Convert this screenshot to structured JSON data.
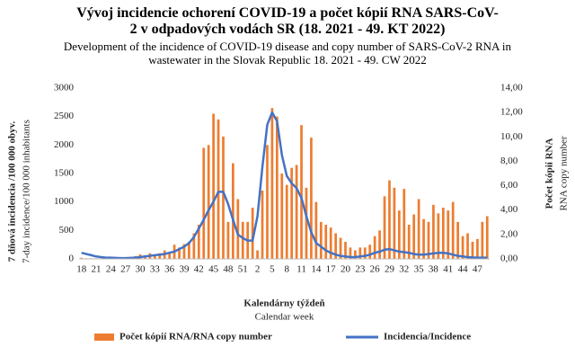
{
  "chart_data": {
    "type": "bar",
    "title": "Vývoj incidencie ochorení COVID-19 a počet kópií RNA  SARS-CoV-2 v odpadových vodách SR (18. 2021 - 49. KT 2022)",
    "subtitle": "Development of the incidence of COVID-19 disease and copy number of SARS-CoV-2 RNA in wastewater in the Slovak Republic 18. 2021 - 49. CW 2022",
    "x_label": "Kalendárny týždeň",
    "x_label_en": "Calendar week",
    "y_label": "7 dňová incidencia /100 000 obyv.",
    "y_label_en": "7-day incidence/100 000 inhabitants",
    "y2_label": "Počet kópií RNA",
    "y2_label_en": "RNA copy number",
    "categories": [
      "18",
      null,
      null,
      "21",
      null,
      null,
      "24",
      null,
      null,
      "27",
      null,
      null,
      "30",
      null,
      null,
      "33",
      null,
      null,
      "36",
      null,
      null,
      "39",
      null,
      null,
      "42",
      null,
      null,
      "45",
      null,
      null,
      "48",
      null,
      null,
      "51",
      null,
      null,
      "2",
      null,
      null,
      "5",
      null,
      null,
      "8",
      null,
      null,
      "11",
      null,
      null,
      "14",
      null,
      null,
      "17",
      null,
      null,
      "20",
      null,
      null,
      "23",
      null,
      null,
      "26",
      null,
      null,
      "29",
      null,
      null,
      "32",
      null,
      null,
      "35",
      null,
      null,
      "38",
      null,
      null,
      "41",
      null,
      null,
      "44",
      null,
      null,
      "47",
      null,
      null
    ],
    "series": [
      {
        "name": "Počet kópií RNA/RNA copy number",
        "type": "bar",
        "color": "#ed7d31",
        "values": [
          20,
          10,
          10,
          10,
          10,
          10,
          10,
          10,
          20,
          20,
          30,
          50,
          80,
          60,
          100,
          60,
          100,
          150,
          120,
          250,
          200,
          260,
          300,
          450,
          600,
          1950,
          2000,
          2550,
          2450,
          2150,
          650,
          1680,
          1050,
          650,
          650,
          900,
          150,
          1200,
          2000,
          2650,
          2500,
          1500,
          1300,
          1600,
          1650,
          2350,
          1250,
          2130,
          1000,
          650,
          600,
          550,
          450,
          370,
          300,
          200,
          150,
          200,
          200,
          250,
          400,
          500,
          1100,
          1380,
          1250,
          850,
          1230,
          600,
          780,
          1050,
          700,
          650,
          950,
          800,
          900,
          850,
          1000,
          650,
          400,
          450,
          300,
          350,
          650,
          750
        ]
      },
      {
        "name": "Incidencia/Incidence",
        "type": "line",
        "axis": "y2",
        "color": "#4472c4",
        "values": [
          0.5,
          0.4,
          0.3,
          0.2,
          0.15,
          0.1,
          0.1,
          0.08,
          0.07,
          0.07,
          0.08,
          0.1,
          0.15,
          0.2,
          0.25,
          0.3,
          0.35,
          0.4,
          0.5,
          0.6,
          0.8,
          1.0,
          1.3,
          1.8,
          2.5,
          3.2,
          4.0,
          4.7,
          5.5,
          5.5,
          4.5,
          3.2,
          2.0,
          1.7,
          1.5,
          1.5,
          3.5,
          7.5,
          11,
          12,
          11.3,
          8.5,
          6.8,
          6.2,
          5.8,
          5.0,
          3.5,
          2.2,
          1.3,
          1.0,
          0.7,
          0.5,
          0.35,
          0.25,
          0.2,
          0.15,
          0.15,
          0.2,
          0.25,
          0.35,
          0.5,
          0.6,
          0.75,
          0.8,
          0.7,
          0.6,
          0.55,
          0.5,
          0.4,
          0.35,
          0.35,
          0.4,
          0.45,
          0.5,
          0.5,
          0.45,
          0.35,
          0.25,
          0.2,
          0.15,
          0.12,
          0.1,
          0.1,
          0.1
        ]
      }
    ],
    "ylim": [
      0,
      3000
    ],
    "yticks": [
      0,
      500,
      1000,
      1500,
      2000,
      2500,
      3000
    ],
    "y2lim": [
      0,
      14
    ],
    "y2ticks": [
      {
        "value": 0,
        "label": "0,00"
      },
      {
        "value": 2,
        "label": "2,00"
      },
      {
        "value": 4,
        "label": "4,00"
      },
      {
        "value": 6,
        "label": "6,00"
      },
      {
        "value": 8,
        "label": "8,00"
      },
      {
        "value": 10,
        "label": "10,00"
      },
      {
        "value": 12,
        "label": "12,00"
      },
      {
        "value": 14,
        "label": "14,00"
      }
    ],
    "grid": false,
    "legend": "bottom"
  }
}
